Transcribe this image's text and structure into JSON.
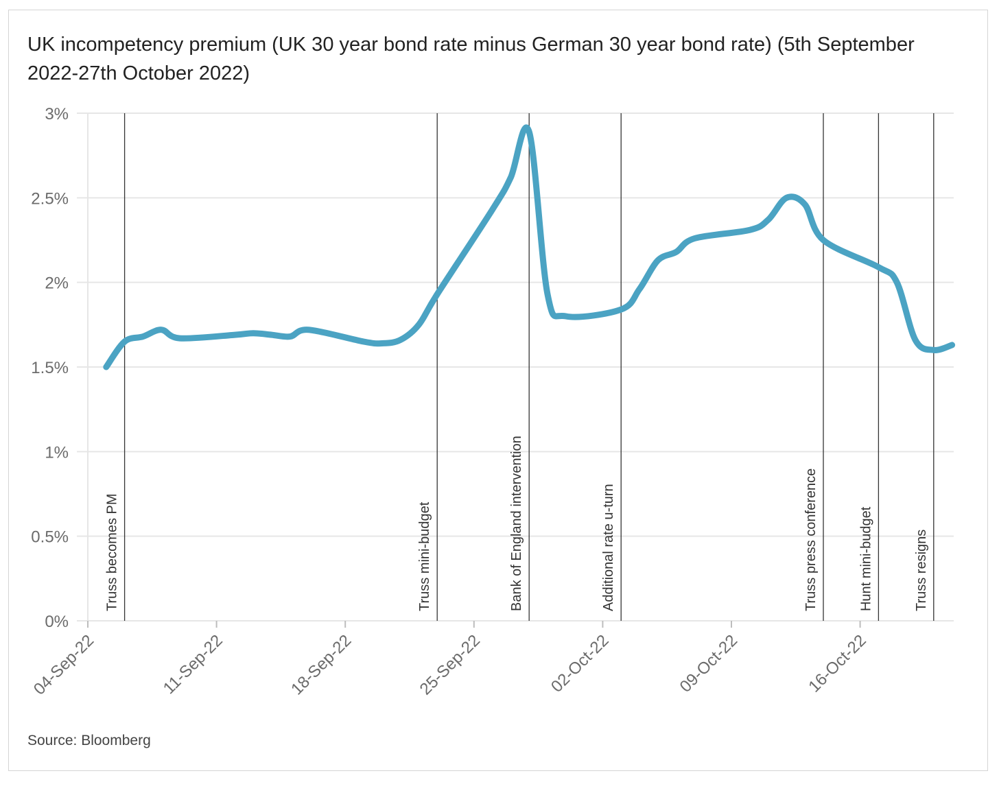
{
  "title": "UK incompetency premium (UK 30 year bond rate minus German 30 year bond rate) (5th September 2022-27th October 2022)",
  "source": "Source: Bloomberg",
  "colors": {
    "line": "#4ba3c3",
    "grid": "#e6e6e6",
    "event_line": "#333333"
  },
  "chart_data": {
    "type": "line",
    "title": "UK incompetency premium (UK 30 year bond rate minus German 30 year bond rate) (5th September 2022-27th October 2022)",
    "xlabel": "",
    "ylabel": "",
    "ylim": [
      0,
      3
    ],
    "y_ticks": [
      0,
      0.5,
      1,
      1.5,
      2,
      2.5,
      3
    ],
    "y_tick_labels": [
      "0%",
      "0.5%",
      "1%",
      "1.5%",
      "2%",
      "2.5%",
      "3%"
    ],
    "x_ticks": [
      "2022-09-04",
      "2022-09-11",
      "2022-09-18",
      "2022-09-25",
      "2022-10-02",
      "2022-10-09",
      "2022-10-16"
    ],
    "x_tick_labels": [
      "04-Sep-22",
      "11-Sep-22",
      "18-Sep-22",
      "25-Sep-22",
      "02-Oct-22",
      "09-Oct-22",
      "16-Oct-22"
    ],
    "grid": true,
    "legend": "none",
    "series": [
      {
        "x": [
          "2022-09-05",
          "2022-09-06",
          "2022-09-07",
          "2022-09-08",
          "2022-09-09",
          "2022-09-12",
          "2022-09-13",
          "2022-09-14",
          "2022-09-15",
          "2022-09-16",
          "2022-09-19",
          "2022-09-20",
          "2022-09-21",
          "2022-09-22",
          "2022-09-23",
          "2022-09-26",
          "2022-09-27",
          "2022-09-28",
          "2022-09-29",
          "2022-09-30",
          "2022-10-03",
          "2022-10-04",
          "2022-10-05",
          "2022-10-06",
          "2022-10-07",
          "2022-10-10",
          "2022-10-11",
          "2022-10-12",
          "2022-10-13",
          "2022-10-14",
          "2022-10-17",
          "2022-10-18",
          "2022-10-19",
          "2022-10-20",
          "2022-10-21"
        ],
        "values": [
          1.5,
          1.65,
          1.68,
          1.72,
          1.67,
          1.69,
          1.7,
          1.69,
          1.68,
          1.72,
          1.65,
          1.64,
          1.66,
          1.75,
          1.93,
          2.43,
          2.62,
          2.89,
          1.93,
          1.8,
          1.84,
          1.96,
          2.13,
          2.18,
          2.26,
          2.31,
          2.37,
          2.5,
          2.46,
          2.25,
          2.09,
          2.0,
          1.66,
          1.6,
          1.63
        ]
      }
    ],
    "events": [
      {
        "date": "2022-09-06",
        "label": "Truss becomes PM"
      },
      {
        "date": "2022-09-23",
        "label": "Truss mini-budget"
      },
      {
        "date": "2022-09-28",
        "label": "Bank of England intervention"
      },
      {
        "date": "2022-10-03",
        "label": "Additional rate u-turn"
      },
      {
        "date": "2022-10-14",
        "label": "Truss press conference"
      },
      {
        "date": "2022-10-17",
        "label": "Hunt mini-budget"
      },
      {
        "date": "2022-10-20",
        "label": "Truss resigns"
      }
    ]
  }
}
